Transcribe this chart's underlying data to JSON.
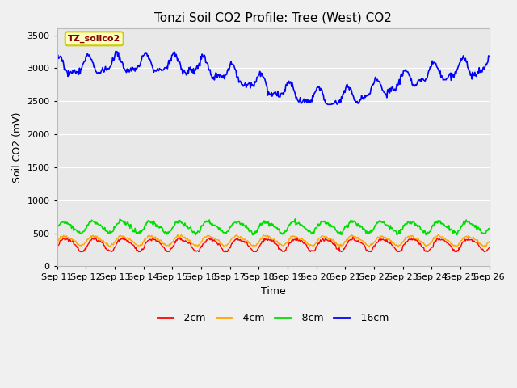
{
  "title": "Tonzi Soil CO2 Profile: Tree (West) CO2",
  "xlabel": "Time",
  "ylabel": "Soil CO2 (mV)",
  "ylim": [
    0,
    3600
  ],
  "yticks": [
    0,
    500,
    1000,
    1500,
    2000,
    2500,
    3000,
    3500
  ],
  "background_color": "#e8e8e8",
  "fig_background": "#f0f0f0",
  "legend_label": "TZ_soilco2",
  "series_labels": [
    "-2cm",
    "-4cm",
    "-8cm",
    "-16cm"
  ],
  "series_colors": [
    "#ff0000",
    "#ffa500",
    "#00dd00",
    "#0000ff"
  ],
  "xtick_labels": [
    "Sep 11",
    "Sep 12",
    "Sep 13",
    "Sep 14",
    "Sep 15",
    "Sep 16",
    "Sep 17",
    "Sep 18",
    "Sep 19",
    "Sep 20",
    "Sep 21",
    "Sep 22",
    "Sep 23",
    "Sep 24",
    "Sep 25",
    "Sep 26"
  ],
  "title_fontsize": 11,
  "axis_label_fontsize": 9,
  "tick_fontsize": 8
}
